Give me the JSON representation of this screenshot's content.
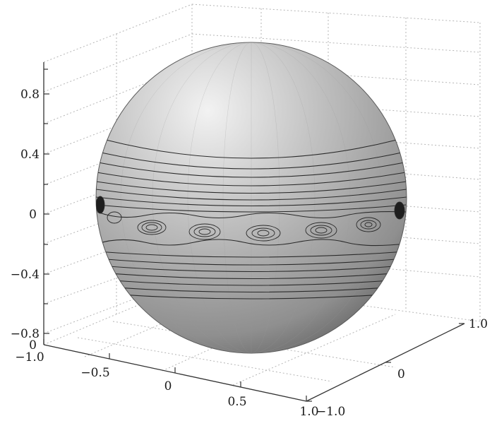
{
  "figure": {
    "vertical_axis_ticks": [
      "0.8",
      "0.4",
      "0",
      "−0.4",
      "−0.8",
      "0"
    ],
    "x_axis_ticks": [
      "−1.0",
      "−0.5",
      "0",
      "0.5",
      "1.0"
    ],
    "y_axis_ticks": [
      "−1.0",
      "0",
      "1.0"
    ]
  },
  "colors": {
    "sphere_light": "#e8e8e8",
    "sphere_mid": "#a9a9a9",
    "sphere_dark": "#6e6e6e",
    "contour": "#2a2a2a",
    "grid": "#b5b5b5",
    "axis": "#333333"
  }
}
